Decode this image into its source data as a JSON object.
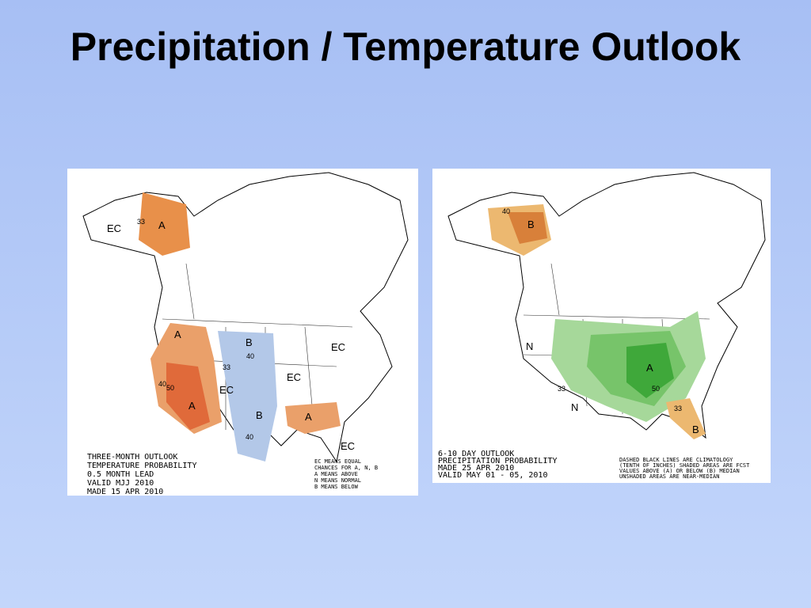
{
  "title": "Precipitation / Temperature Outlook",
  "maps": [
    {
      "caption": [
        "THREE-MONTH OUTLOOK",
        "TEMPERATURE PROBABILITY",
        "0.5 MONTH LEAD",
        "VALID MJJ 2010",
        "MADE 15 APR 2010"
      ],
      "key": [
        "EC MEANS EQUAL",
        "CHANCES FOR A, N, B",
        "A MEANS ABOVE",
        "N MEANS NORMAL",
        "B MEANS BELOW"
      ],
      "labels": [
        "A",
        "A",
        "A",
        "A",
        "B",
        "B",
        "EC",
        "EC",
        "EC",
        "EC",
        "EC",
        "33",
        "40",
        "50",
        "33",
        "40",
        "40"
      ]
    },
    {
      "caption": [
        "6-10 DAY OUTLOOK",
        "PRECIPITATION PROBABILITY",
        "MADE 25 APR 2010",
        "VALID MAY 01 - 05, 2010"
      ],
      "key": [
        "DASHED BLACK LINES ARE CLIMATOLOGY",
        "(TENTH OF INCHES) SHADED AREAS ARE FCST",
        "VALUES ABOVE (A) OR BELOW (B) MEDIAN",
        "UNSHADED AREAS ARE NEAR-MEDIAN"
      ],
      "labels": [
        "B",
        "A",
        "B",
        "N",
        "N",
        "40",
        "33",
        "50",
        "33"
      ]
    }
  ]
}
